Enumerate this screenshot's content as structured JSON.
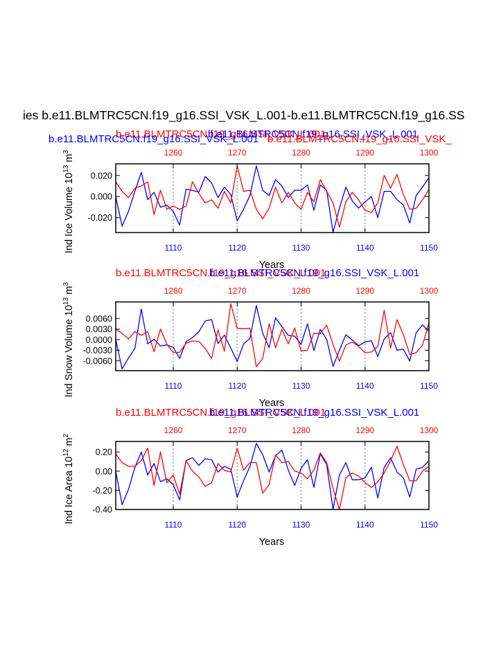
{
  "page_title": "ies b.e11.BLMTRC5CN.f19_g16.SSI_VSK_L.001-b.e11.BLMTRC5CN.f19_g16.SS",
  "colors": {
    "red": "#ff0000",
    "blue": "#0000ff",
    "grid": "#999999",
    "axis": "#000000"
  },
  "chart_data": [
    {
      "type": "line",
      "name": "ice-volume",
      "title_red": "b.e11.BLMTRC5CN.f19_g16.SSI_VSK_L.001",
      "title_blue": "b.e11.BLMTRC5CN.f19_g16.SSI_VSK_L.001",
      "overlap_red_a": "b.e11.BLMTRC5CN.f19_g16.SSI_VSK_L.001",
      "overlap_red_b": "b.e11.BLMTRC5CN.f19_g16.SSI_VSK_",
      "overlap_blue_a": "b.e11.BLMTRC5CN.f19_g16.SSI_VSK_L.001",
      "ylabel_pre": "Ind Ice Volume 10",
      "ylabel_exp": "13",
      "ylabel_unit": " m",
      "ylabel_unit_exp": "3",
      "xlabel": "Years",
      "xlim": [
        1101,
        1150
      ],
      "top_xlim": [
        1251,
        1300
      ],
      "ylim": [
        -0.034,
        0.031
      ],
      "yticks": [
        -0.02,
        0.0,
        0.02
      ],
      "ytick_labels": [
        "-0.020",
        "0.000",
        "0.020"
      ],
      "xticks": [
        1110,
        1120,
        1130,
        1140,
        1150
      ],
      "top_xticks": [
        1260,
        1270,
        1280,
        1290,
        1300
      ],
      "grid_x": [
        1110,
        1120,
        1130,
        1140
      ],
      "series": [
        {
          "name": "blue",
          "color": "blue",
          "values": [
            0.0,
            -0.028,
            -0.014,
            0.005,
            0.023,
            -0.003,
            0.004,
            -0.01,
            -0.008,
            -0.014,
            -0.027,
            0.007,
            0.006,
            0.004,
            0.019,
            0.013,
            -0.001,
            0.009,
            0.002,
            -0.023,
            -0.012,
            0.001,
            0.029,
            0.006,
            0.001,
            0.016,
            0.01,
            -0.001,
            0.006,
            0.006,
            0.011,
            -0.013,
            0.011,
            0.006,
            -0.034,
            -0.011,
            0.009,
            -0.004,
            -0.011,
            -0.005,
            0.0,
            -0.02,
            0.005,
            0.005,
            -0.003,
            -0.008,
            -0.025,
            0.001,
            0.009,
            0.018
          ]
        },
        {
          "name": "red",
          "color": "red",
          "values": [
            0.014,
            0.005,
            -0.001,
            0.008,
            0.01,
            0.014,
            -0.017,
            0.006,
            -0.012,
            -0.009,
            -0.012,
            -0.009,
            0.014,
            0.003,
            -0.006,
            -0.003,
            -0.011,
            0.005,
            -0.006,
            0.029,
            0.005,
            0.006,
            -0.012,
            -0.021,
            -0.011,
            0.009,
            -0.006,
            0.004,
            -0.006,
            -0.012,
            0.004,
            -0.005,
            0.016,
            0.005,
            -0.006,
            -0.029,
            -0.005,
            0.004,
            -0.003,
            -0.013,
            -0.015,
            -0.006,
            0.02,
            0.008,
            0.021,
            0.002,
            -0.012,
            -0.011,
            -0.003,
            0.007
          ]
        }
      ]
    },
    {
      "type": "line",
      "name": "snow-volume",
      "title_red": "b.e11.BLMTRC5CN.f19_g16.SSI_VSK_L.001",
      "title_blue": "b.e11.BLMTRC5CN.f19_g16.SSI_VSK_L.001",
      "ylabel_pre": "Ind Snow Volume 10",
      "ylabel_exp": "13",
      "ylabel_unit": " m",
      "ylabel_unit_exp": "3",
      "xlabel": "Years",
      "xlim": [
        1101,
        1150
      ],
      "top_xlim": [
        1251,
        1300
      ],
      "ylim": [
        -0.0088,
        0.0107
      ],
      "yticks": [
        -0.006,
        -0.003,
        0.0,
        0.003,
        0.006
      ],
      "ytick_labels": [
        "-0.0060",
        "-0.0030",
        "0.0000",
        "0.0030",
        "0.0060"
      ],
      "xticks": [
        1110,
        1120,
        1130,
        1140,
        1150
      ],
      "top_xticks": [
        1260,
        1270,
        1280,
        1290,
        1300
      ],
      "grid_x": [
        1110,
        1120,
        1130,
        1140
      ],
      "series": [
        {
          "name": "blue",
          "color": "blue",
          "values": [
            0.0,
            -0.0083,
            -0.0052,
            -0.0025,
            0.0087,
            -0.0012,
            0.0001,
            -0.0018,
            -0.0015,
            -0.0022,
            -0.0053,
            -0.0006,
            0.0006,
            0.0022,
            0.0053,
            0.0057,
            -0.0011,
            0.0013,
            -0.0024,
            -0.0062,
            -0.0012,
            0.0003,
            0.0097,
            0.0018,
            -0.0023,
            0.0062,
            0.0037,
            0.0012,
            0.001,
            -0.0013,
            0.0045,
            -0.0031,
            0.0029,
            0.0001,
            -0.0076,
            -0.003,
            0.0014,
            -0.0001,
            -0.0017,
            -0.0007,
            -0.0003,
            -0.0048,
            0.0002,
            0.002,
            -0.003,
            -0.0027,
            -0.0061,
            0.002,
            0.0042,
            0.0023
          ]
        },
        {
          "name": "red",
          "color": "red",
          "values": [
            0.003,
            0.0018,
            0.0002,
            0.0023,
            0.0012,
            0.0023,
            -0.0034,
            0.003,
            -0.0013,
            -0.0037,
            -0.0036,
            -0.001,
            -0.0004,
            -0.0005,
            -0.0025,
            -0.0053,
            0.0028,
            -0.0033,
            0.0102,
            0.0032,
            0.0031,
            0.0032,
            -0.0077,
            -0.0053,
            0.0045,
            -0.0023,
            0.0029,
            -0.0012,
            0.0033,
            -0.0032,
            -0.003,
            0.0018,
            0.0017,
            0.0041,
            -0.0014,
            -0.0061,
            -0.0015,
            -0.0007,
            -0.0019,
            -0.0037,
            -0.0035,
            -0.0019,
            0.0083,
            -0.0024,
            0.0057,
            0.0014,
            -0.0042,
            -0.0037,
            -0.0016,
            0.0048
          ]
        }
      ]
    },
    {
      "type": "line",
      "name": "ice-area",
      "title_red": "b.e11.BLMTRC5CN.f19_g16.SSI_VSK_L.001",
      "title_blue": "b.e11.BLMTRC5CN.f19_g16.SSI_VSK_L.001",
      "ylabel_pre": "Ind Ice Area 10",
      "ylabel_exp": "12",
      "ylabel_unit": " m",
      "ylabel_unit_exp": "2",
      "xlabel": "Years",
      "xlim": [
        1101,
        1150
      ],
      "top_xlim": [
        1251,
        1300
      ],
      "ylim": [
        -0.4,
        0.31
      ],
      "yticks": [
        -0.4,
        -0.2,
        0.0,
        0.2
      ],
      "ytick_labels": [
        "-0.40",
        "-0.20",
        "0.00",
        "0.20"
      ],
      "xticks": [
        1110,
        1120,
        1130,
        1140,
        1150
      ],
      "top_xticks": [
        1260,
        1270,
        1280,
        1290,
        1300
      ],
      "grid_x": [
        1110,
        1120,
        1130,
        1140
      ],
      "series": [
        {
          "name": "blue",
          "color": "blue",
          "values": [
            0.0,
            -0.35,
            -0.19,
            0.04,
            0.2,
            -0.04,
            0.08,
            -0.11,
            -0.08,
            -0.14,
            -0.3,
            0.11,
            0.14,
            0.06,
            0.13,
            0.12,
            -0.01,
            0.05,
            0.02,
            -0.27,
            -0.1,
            0.05,
            0.29,
            0.17,
            -0.01,
            0.16,
            0.22,
            0.01,
            -0.15,
            0.03,
            0.12,
            -0.17,
            0.18,
            0.07,
            -0.4,
            -0.04,
            0.09,
            -0.09,
            -0.09,
            -0.07,
            0.04,
            -0.28,
            0.04,
            0.14,
            -0.01,
            -0.07,
            -0.27,
            0.02,
            0.04,
            0.11
          ]
        },
        {
          "name": "red",
          "color": "red",
          "values": [
            0.18,
            0.09,
            0.05,
            0.05,
            0.11,
            0.24,
            -0.15,
            0.2,
            -0.12,
            -0.04,
            -0.24,
            0.11,
            0.0,
            -0.06,
            -0.16,
            -0.12,
            0.08,
            0.01,
            -0.01,
            0.24,
            0.01,
            0.09,
            0.09,
            -0.23,
            -0.14,
            0.17,
            0.09,
            0.1,
            0.0,
            -0.02,
            -0.08,
            0.01,
            0.19,
            0.09,
            -0.18,
            -0.4,
            -0.07,
            -0.02,
            -0.05,
            -0.12,
            -0.17,
            -0.11,
            -0.02,
            0.11,
            0.26,
            0.07,
            -0.1,
            -0.1,
            0.0,
            0.05
          ]
        }
      ]
    }
  ]
}
